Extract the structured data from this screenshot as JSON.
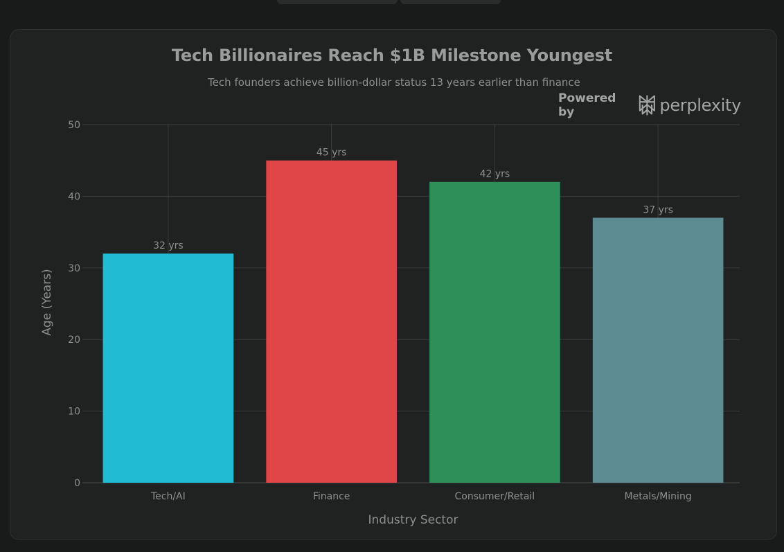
{
  "chart_data": {
    "type": "bar",
    "title": "Tech Billionaires Reach $1B Milestone Youngest",
    "subtitle": "Tech founders achieve billion-dollar status 13 years earlier than finance",
    "xlabel": "Industry Sector",
    "ylabel": "Age (Years)",
    "categories": [
      "Tech/AI",
      "Finance",
      "Consumer/Retail",
      "Metals/Mining"
    ],
    "values": [
      32,
      45,
      42,
      37
    ],
    "data_labels": [
      "32 yrs",
      "45 yrs",
      "42 yrs",
      "37 yrs"
    ],
    "colors": [
      "#21bcd4",
      "#de4648",
      "#2e8f58",
      "#5e8c93"
    ],
    "ylim": [
      0,
      50
    ],
    "yticks": [
      0,
      10,
      20,
      30,
      40,
      50
    ],
    "grid": true
  },
  "branding": {
    "powered_by": "Powered by",
    "name": "perplexity",
    "icon": "perplexity-logo-icon"
  }
}
